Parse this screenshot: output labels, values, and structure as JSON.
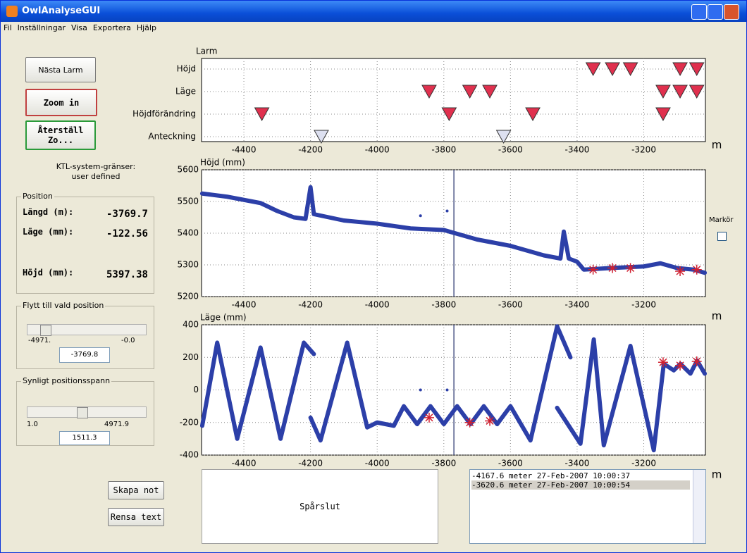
{
  "window": {
    "title": "OwlAnalyseGUI",
    "menu": [
      "Fil",
      "Inställningar",
      "Visa",
      "Exportera",
      "Hjälp"
    ]
  },
  "buttons": {
    "next_alarm": "Nästa Larm",
    "zoom_in": "Zoom in",
    "reset_zoom": "Återställ Zo...",
    "create_note": "Skapa not",
    "clear_text": "Rensa text"
  },
  "limits": {
    "label": "KTL-system-gränser:",
    "value": "user defined"
  },
  "position": {
    "title": "Position",
    "rows": [
      [
        "Längd (m):",
        "-3769.7"
      ],
      [
        "Läge (mm):",
        "-122.56"
      ],
      [
        "Höjd (mm):",
        "5397.38"
      ]
    ]
  },
  "move": {
    "title": "Flytt till vald position",
    "min": "-4971.",
    "max": "-0.0",
    "value": "-3769.8"
  },
  "span": {
    "title": "Synligt positionsspann",
    "min": "1.0",
    "max": "4971.9",
    "value": "1511.3"
  },
  "note": "Spårslut",
  "log": [
    "-4167.6 meter 27-Feb-2007 10:00:37",
    "-3620.6 meter 27-Feb-2007 10:00:54"
  ],
  "marker": "Markör",
  "chart_data": [
    {
      "type": "event",
      "title": "Larm",
      "xlabel": "m",
      "xlim": [
        -4527,
        -3015
      ],
      "xticks": [
        -4400,
        -4200,
        -4000,
        -3800,
        -3600,
        -3400,
        -3200
      ],
      "categories": [
        "Höjd",
        "Läge",
        "Höjdförändring",
        "Anteckning"
      ],
      "colors": [
        "#e0304e",
        "#e0304e",
        "#e0304e",
        "#dde0f0"
      ],
      "x": [
        [
          -3352,
          -3294,
          -3240,
          -3091,
          -3041
        ],
        [
          -3844,
          -3722,
          -3662,
          -3142,
          -3091,
          -3041
        ],
        [
          -4346,
          -3784,
          -3533,
          -3142
        ],
        [
          -4167.6,
          -3620.6
        ]
      ]
    },
    {
      "type": "line",
      "ylabel": "Höjd (mm)",
      "xlabel": "m",
      "xlim": [
        -4527,
        -3015
      ],
      "xticks": [
        -4400,
        -4200,
        -4000,
        -3800,
        -3600,
        -3400,
        -3200
      ],
      "ylim": [
        5200,
        5600
      ],
      "yticks": [
        5200,
        5300,
        5400,
        5500,
        5600
      ],
      "cursor": -3769.7,
      "series": [
        {
          "style": "line",
          "color": "#2c3fa8",
          "x": [
            -4525,
            -4450,
            -4350,
            -4300,
            -4250,
            -4215,
            -4200,
            -4190,
            -4100,
            -4000,
            -3900,
            -3800,
            -3750,
            -3700,
            -3600,
            -3550,
            -3500,
            -3450,
            -3440,
            -3425,
            -3400,
            -3380,
            -3300,
            -3200,
            -3150,
            -3100,
            -3050,
            -3017
          ],
          "values": [
            5525,
            5515,
            5495,
            5470,
            5450,
            5445,
            5545,
            5460,
            5440,
            5430,
            5415,
            5410,
            5395,
            5380,
            5360,
            5345,
            5330,
            5320,
            5405,
            5320,
            5310,
            5285,
            5290,
            5295,
            5305,
            5290,
            5285,
            5275
          ]
        },
        {
          "style": "star",
          "color": "#d02030",
          "x": [
            -3352,
            -3294,
            -3240,
            -3091,
            -3041
          ],
          "values": [
            5285,
            5290,
            5290,
            5280,
            5285
          ]
        },
        {
          "style": "dot",
          "color": "#2c3fa8",
          "x": [
            -3870,
            -3790
          ],
          "values": [
            5455,
            5470
          ]
        }
      ]
    },
    {
      "type": "line",
      "ylabel": "Läge (mm)",
      "xlabel": "m",
      "xlim": [
        -4527,
        -3015
      ],
      "xticks": [
        -4400,
        -4200,
        -4000,
        -3800,
        -3600,
        -3400,
        -3200
      ],
      "ylim": [
        -400,
        400
      ],
      "yticks": [
        -400,
        -200,
        0,
        200,
        400
      ],
      "cursor": -3769.7,
      "series": [
        {
          "style": "line",
          "color": "#2c3fa8",
          "x": [
            -4525,
            -4480,
            -4420,
            -4350,
            -4290,
            -4220,
            -4190,
            -4195,
            -4200,
            -4170,
            -4090,
            -4030,
            -4000,
            -3950,
            -3920,
            -3880,
            -3840,
            -3800,
            -3760,
            -3720,
            -3680,
            -3640,
            -3600,
            -3540,
            -3460,
            -3420,
            -3430,
            -3460,
            -3390,
            -3350,
            -3320,
            -3240,
            -3170,
            -3140,
            -3110,
            -3090,
            -3060,
            -3040,
            -3017
          ],
          "values": [
            -220,
            290,
            -300,
            260,
            -300,
            290,
            220,
            null,
            -170,
            -310,
            290,
            -230,
            -200,
            -220,
            -100,
            -210,
            -100,
            -210,
            -100,
            -210,
            -100,
            -210,
            -100,
            -310,
            390,
            200,
            null,
            -110,
            -330,
            310,
            -340,
            270,
            -370,
            160,
            120,
            160,
            100,
            180,
            100
          ]
        },
        {
          "style": "star",
          "color": "#d02030",
          "x": [
            -3844,
            -3722,
            -3662,
            -3142,
            -3091,
            -3041
          ],
          "values": [
            -170,
            -200,
            -190,
            170,
            150,
            175
          ]
        },
        {
          "style": "dot",
          "color": "#2c3fa8",
          "x": [
            -3870,
            -3790
          ],
          "values": [
            0,
            0
          ]
        }
      ]
    }
  ]
}
